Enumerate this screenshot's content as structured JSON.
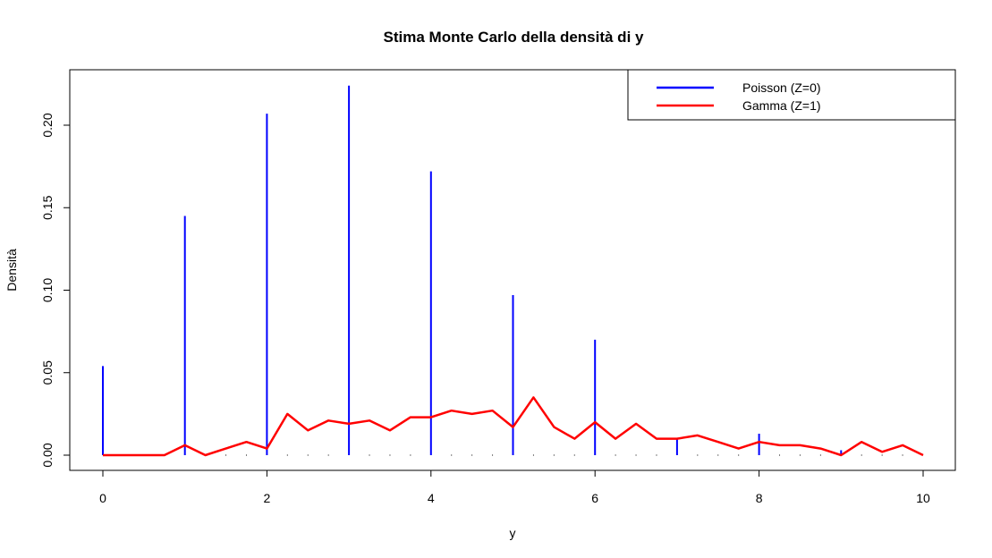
{
  "chart_data": {
    "type": "line",
    "title": "Stima Monte Carlo della densità di y",
    "xlabel": "y",
    "ylabel": "Densità",
    "xlim": [
      0,
      10
    ],
    "ylim": [
      0,
      0.225
    ],
    "x_ticks": [
      0,
      2,
      4,
      6,
      8,
      10
    ],
    "x_tick_labels": [
      "0",
      "2",
      "4",
      "6",
      "8",
      "10"
    ],
    "y_ticks": [
      0.0,
      0.05,
      0.1,
      0.15,
      0.2
    ],
    "y_tick_labels": [
      "0.00",
      "0.05",
      "0.10",
      "0.15",
      "0.20"
    ],
    "grid": false,
    "legend_position": "top-right",
    "series": [
      {
        "name": "Poisson (Z=0)",
        "style": "spikes",
        "color": "#0000ff",
        "x": [
          0,
          1,
          2,
          3,
          4,
          5,
          6,
          7,
          8,
          9,
          10
        ],
        "y": [
          0.054,
          0.145,
          0.207,
          0.224,
          0.172,
          0.097,
          0.07,
          0.01,
          0.013,
          0.003,
          0.0
        ]
      },
      {
        "name": "Gamma (Z=1)",
        "style": "line",
        "color": "#ff0000",
        "x": [
          0,
          0.25,
          0.5,
          0.75,
          1.0,
          1.25,
          1.5,
          1.75,
          2.0,
          2.25,
          2.5,
          2.75,
          3.0,
          3.25,
          3.5,
          3.75,
          4.0,
          4.25,
          4.5,
          4.75,
          5.0,
          5.25,
          5.5,
          5.75,
          6.0,
          6.25,
          6.5,
          6.75,
          7.0,
          7.25,
          7.5,
          7.75,
          8.0,
          8.25,
          8.5,
          8.75,
          9.0,
          9.25,
          9.5,
          9.75,
          10.0
        ],
        "y": [
          0.0,
          0.0,
          0.0,
          0.0,
          0.006,
          0.0,
          0.004,
          0.008,
          0.004,
          0.025,
          0.015,
          0.021,
          0.019,
          0.021,
          0.015,
          0.023,
          0.023,
          0.027,
          0.025,
          0.027,
          0.017,
          0.035,
          0.017,
          0.01,
          0.02,
          0.01,
          0.019,
          0.01,
          0.01,
          0.012,
          0.008,
          0.004,
          0.008,
          0.006,
          0.006,
          0.004,
          0.0,
          0.008,
          0.002,
          0.006,
          0.0
        ]
      }
    ]
  }
}
